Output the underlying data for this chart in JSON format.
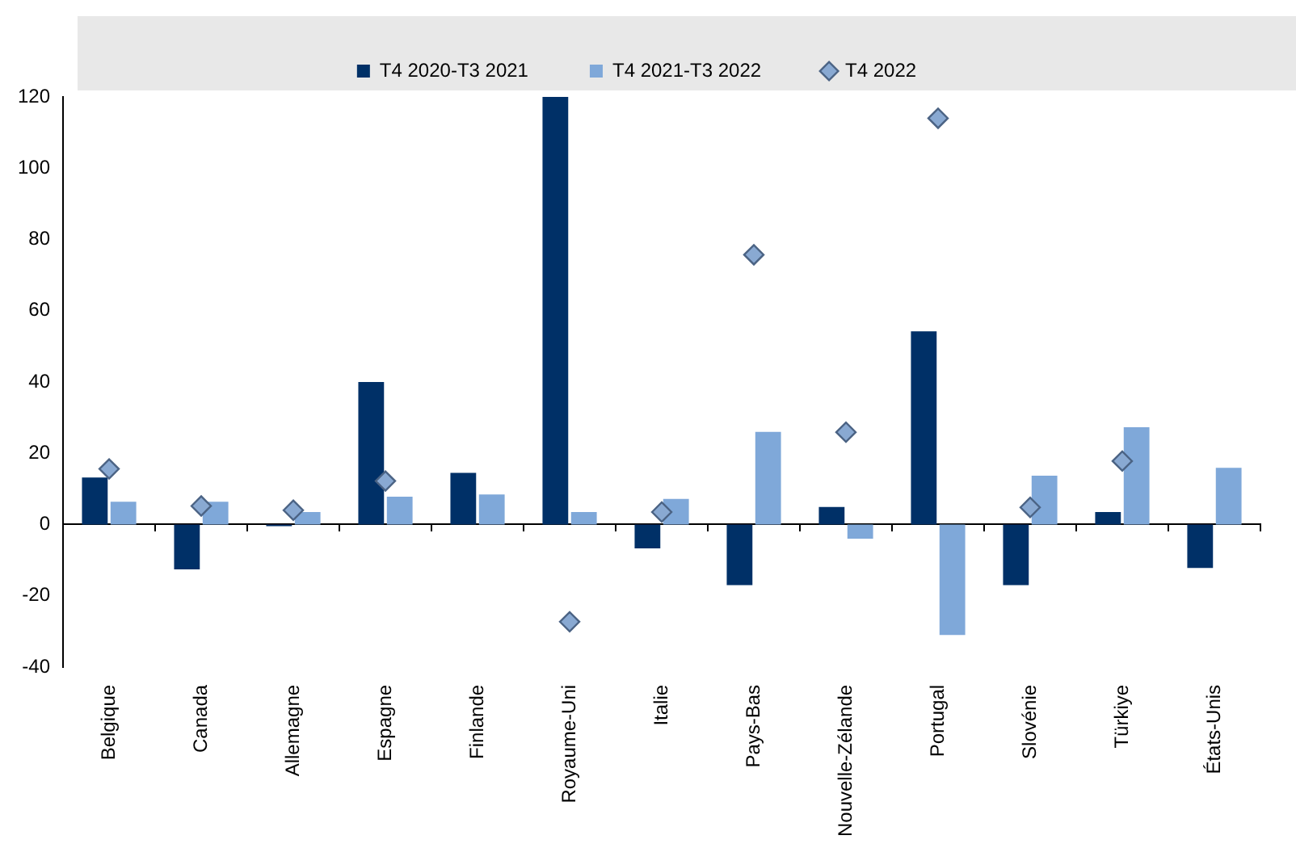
{
  "chart_data": {
    "type": "bar",
    "categories": [
      "Belgique",
      "Canada",
      "Allemagne",
      "Espagne",
      "Finlande",
      "Royaume-Uni",
      "Italie",
      "Pays-Bas",
      "Nouvelle-Zélande",
      "Portugal",
      "Slovénie",
      "Türkiye",
      "États-Unis"
    ],
    "series": [
      {
        "name": "T4 2020-T3 2021",
        "color": "#003067",
        "values": [
          13.2,
          -12.6,
          -0.5,
          40,
          14.5,
          120,
          -6.7,
          -17,
          4.9,
          54.2,
          -17,
          3.5,
          -12.2
        ]
      },
      {
        "name": "T4 2021-T3 2022",
        "color": "#7fa8d9",
        "values": [
          6.4,
          6.4,
          3.5,
          7.8,
          8.4,
          3.5,
          7.2,
          26,
          -4,
          -31,
          13.7,
          27.3,
          15.9
        ]
      },
      {
        "name": "T4 2022",
        "type": "scatter",
        "color": "#89a9d2",
        "x": [
          "Belgique",
          "Canada",
          "Allemagne",
          "Espagne",
          "Royaume-Uni",
          "Italie",
          "Pays-Bas",
          "Nouvelle-Zélande",
          "Portugal",
          "Slovénie",
          "Türkiye"
        ],
        "values": [
          15.6,
          5.2,
          4,
          12.2,
          -27.3,
          3.5,
          75.7,
          25.9,
          114,
          4.8,
          17.8
        ]
      }
    ],
    "ylim": [
      -40,
      120
    ],
    "yticks": [
      -40,
      -20,
      0,
      20,
      40,
      60,
      80,
      100,
      120
    ],
    "legend": "top",
    "marker": "diamond"
  }
}
